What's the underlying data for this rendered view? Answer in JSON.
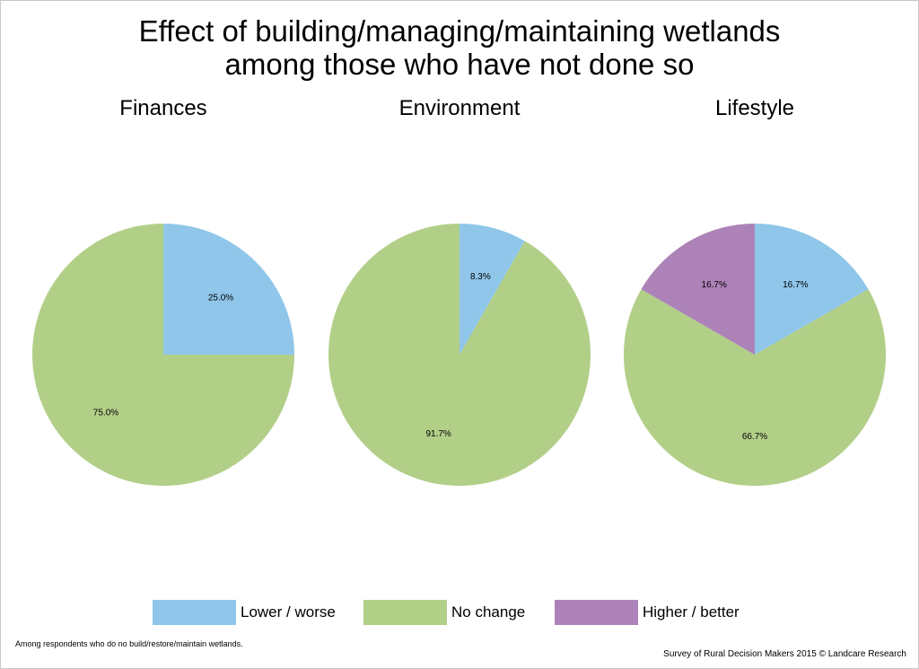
{
  "title_line1": "Effect of building/managing/maintaining wetlands",
  "title_line2": "among those who have not done so",
  "colors": {
    "lower_worse": "#8fc6ea",
    "no_change": "#b2cf88",
    "higher_better": "#ad82b8"
  },
  "legend": [
    {
      "label": "Lower / worse",
      "color": "#8fc6ea"
    },
    {
      "label": "No change",
      "color": "#b2cf88"
    },
    {
      "label": "Higher / better",
      "color": "#ad82b8"
    }
  ],
  "chart_data": [
    {
      "type": "pie",
      "title": "Finances",
      "slices": [
        {
          "category": "Lower / worse",
          "value": 25.0,
          "label": "25.0%",
          "color": "#8fc6ea"
        },
        {
          "category": "No change",
          "value": 75.0,
          "label": "75.0%",
          "color": "#b2cf88"
        }
      ]
    },
    {
      "type": "pie",
      "title": "Environment",
      "slices": [
        {
          "category": "Lower / worse",
          "value": 8.3,
          "label": "8.3%",
          "color": "#8fc6ea"
        },
        {
          "category": "No change",
          "value": 91.7,
          "label": "91.7%",
          "color": "#b2cf88"
        }
      ]
    },
    {
      "type": "pie",
      "title": "Lifestyle",
      "slices": [
        {
          "category": "Lower / worse",
          "value": 16.7,
          "label": "16.7%",
          "color": "#8fc6ea"
        },
        {
          "category": "No change",
          "value": 66.7,
          "label": "66.7%",
          "color": "#b2cf88"
        },
        {
          "category": "Higher / better",
          "value": 16.7,
          "label": "16.7%",
          "color": "#ad82b8"
        }
      ]
    }
  ],
  "footnote_left": "Among respondents who do no build/restore/maintain wetlands.",
  "footnote_right": "Survey of Rural Decision Makers 2015 © Landcare Research"
}
